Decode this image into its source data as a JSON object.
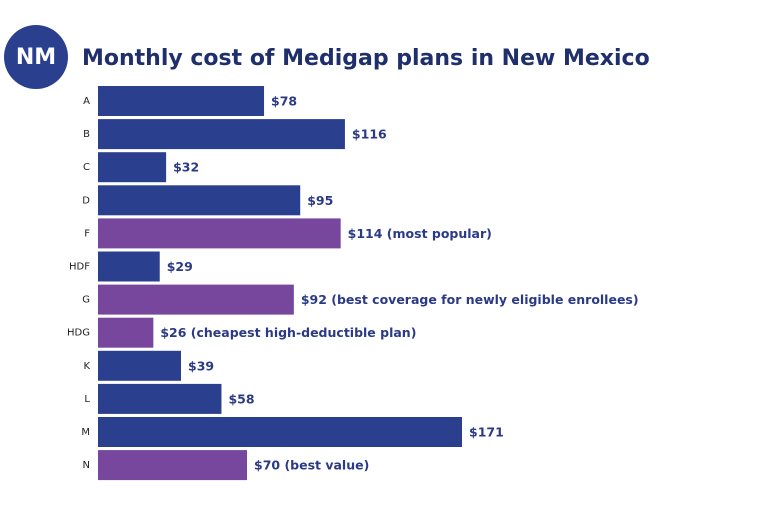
{
  "chart_data": {
    "type": "bar",
    "orientation": "horizontal",
    "badge": "NM",
    "title": "Monthly cost of Medigap plans in New Mexico",
    "categories": [
      "A",
      "B",
      "C",
      "D",
      "F",
      "HDF",
      "G",
      "HDG",
      "K",
      "L",
      "M",
      "N"
    ],
    "values": [
      78,
      116,
      32,
      95,
      114,
      29,
      92,
      26,
      39,
      58,
      171,
      70
    ],
    "value_labels": [
      "$78",
      "$116",
      "$32",
      "$95",
      "$114 (most popular)",
      "$29",
      "$92 (best coverage for newly eligible enrollees)",
      "$26 (cheapest high-deductible plan)",
      "$39",
      "$58",
      "$171",
      "$70 (best value)"
    ],
    "colors": [
      "#2b3f8f",
      "#2b3f8f",
      "#2b3f8f",
      "#2b3f8f",
      "#76479c",
      "#2b3f8f",
      "#76479c",
      "#76479c",
      "#2b3f8f",
      "#2b3f8f",
      "#2b3f8f",
      "#76479c"
    ]
  }
}
